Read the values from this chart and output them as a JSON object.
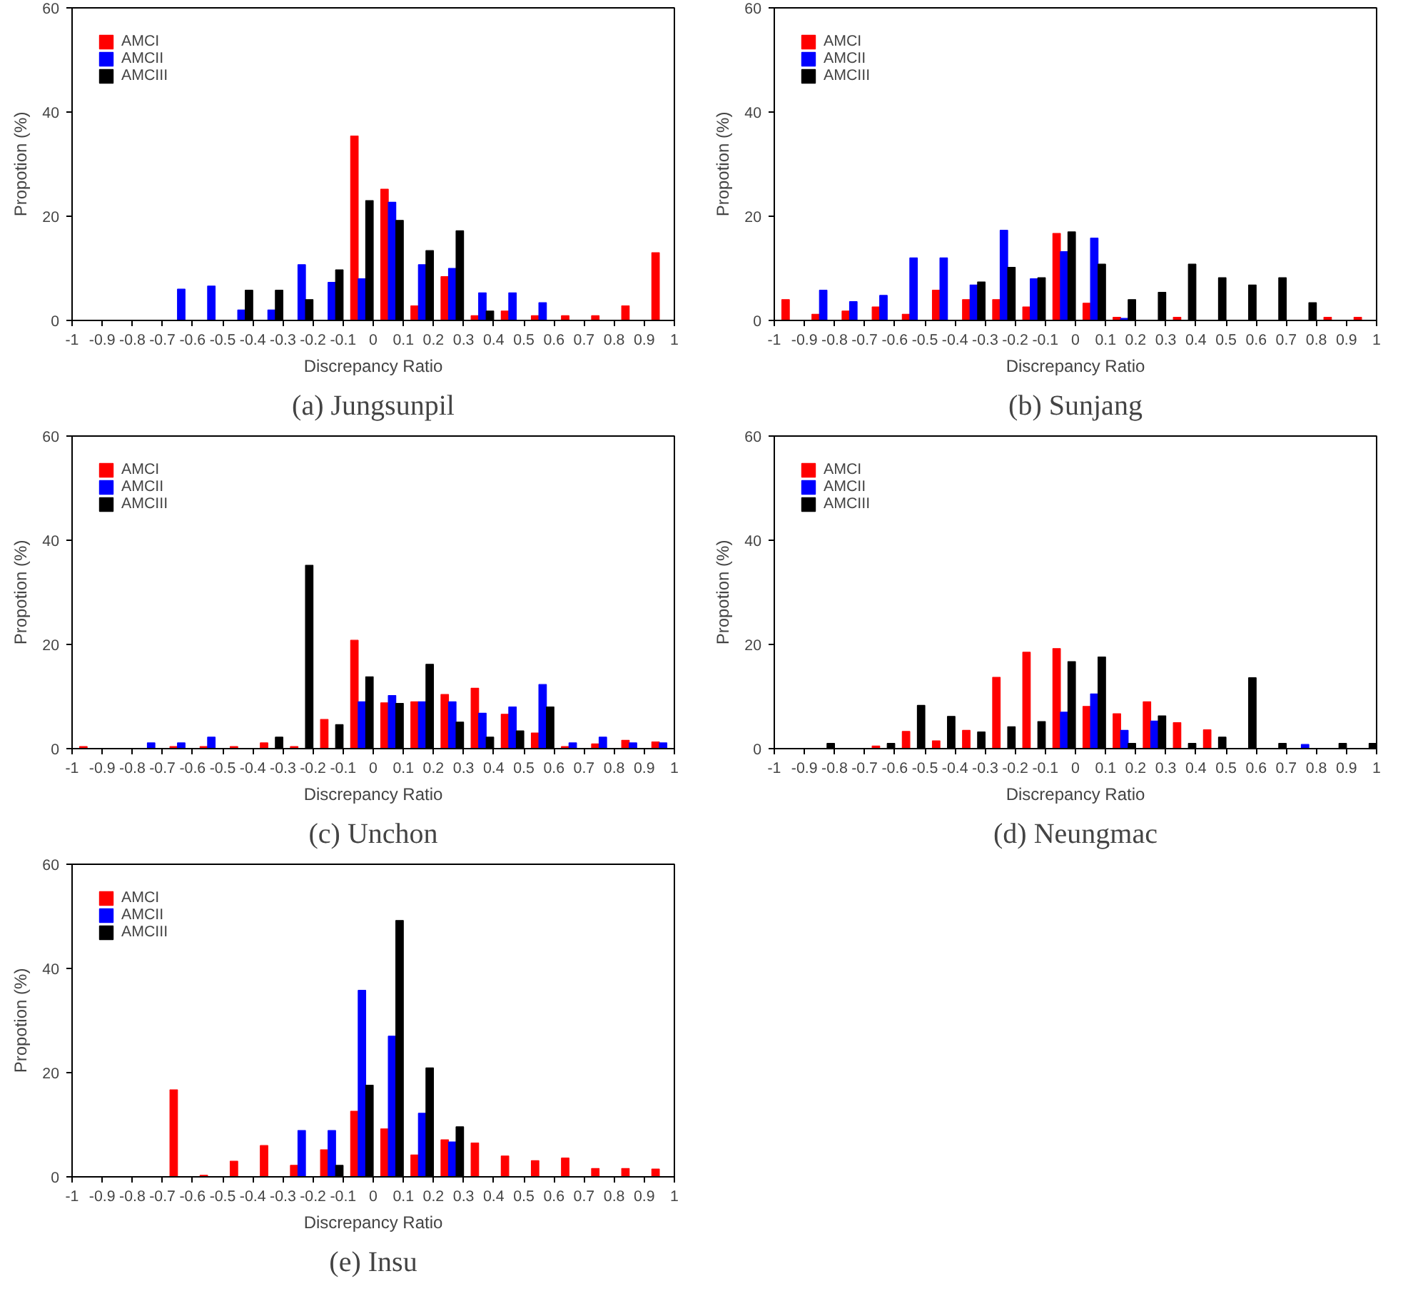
{
  "chart_data": [
    {
      "type": "histogram",
      "title": "(a) Jungsunpil",
      "xlabel": "Discrepancy Ratio",
      "ylabel": "Propotion (%)",
      "legend": "top left",
      "xlim": [
        -1,
        1
      ],
      "ylim": [
        0,
        60
      ],
      "xticks": [
        -1,
        -0.9,
        -0.8,
        -0.7,
        -0.6,
        -0.5,
        -0.4,
        -0.3,
        -0.2,
        -0.1,
        0,
        0.1,
        0.2,
        0.3,
        0.4,
        0.5,
        0.6,
        0.7,
        0.8,
        0.9,
        1
      ],
      "yticks": [
        0,
        20,
        40,
        60
      ],
      "bins": [
        -1,
        -0.9,
        -0.8,
        -0.7,
        -0.6,
        -0.5,
        -0.4,
        -0.3,
        -0.2,
        -0.1,
        0,
        0.1,
        0.2,
        0.3,
        0.4,
        0.5,
        0.6,
        0.7,
        0.8,
        0.9,
        1
      ],
      "series": [
        {
          "name": "AMCI",
          "color": "#ff0000",
          "values": [
            0,
            0,
            0,
            0,
            0,
            0,
            0,
            0,
            0,
            35.4,
            25.2,
            2.8,
            8.4,
            0.9,
            1.8,
            0.9,
            0.9,
            0.9,
            2.8,
            13
          ]
        },
        {
          "name": "AMCII",
          "color": "#0000ff",
          "values": [
            0,
            0,
            0,
            6,
            6.6,
            2,
            2,
            10.7,
            7.3,
            8,
            22.7,
            10.7,
            10,
            5.3,
            5.3,
            3.4,
            0,
            0,
            0,
            0
          ]
        },
        {
          "name": "AMCIII",
          "color": "#000000",
          "values": [
            0,
            0,
            0,
            0,
            0,
            5.8,
            5.8,
            4,
            9.7,
            23,
            19.2,
            13.4,
            17.2,
            1.8,
            0,
            0,
            0,
            0,
            0,
            0
          ]
        }
      ]
    },
    {
      "type": "histogram",
      "title": "(b) Sunjang",
      "xlabel": "Discrepancy Ratio",
      "ylabel": "Propotion (%)",
      "legend": "top left",
      "xlim": [
        -1,
        1
      ],
      "ylim": [
        0,
        60
      ],
      "xticks": [
        -1,
        -0.9,
        -0.8,
        -0.7,
        -0.6,
        -0.5,
        -0.4,
        -0.3,
        -0.2,
        -0.1,
        0,
        0.1,
        0.2,
        0.3,
        0.4,
        0.5,
        0.6,
        0.7,
        0.8,
        0.9,
        1
      ],
      "yticks": [
        0,
        20,
        40,
        60
      ],
      "bins": [
        -1,
        -0.9,
        -0.8,
        -0.7,
        -0.6,
        -0.5,
        -0.4,
        -0.3,
        -0.2,
        -0.1,
        0,
        0.1,
        0.2,
        0.3,
        0.4,
        0.5,
        0.6,
        0.7,
        0.8,
        0.9,
        1
      ],
      "series": [
        {
          "name": "AMCI",
          "color": "#ff0000",
          "values": [
            4,
            1.2,
            1.8,
            2.6,
            1.2,
            5.8,
            4,
            4,
            2.6,
            16.7,
            3.3,
            0.6,
            0,
            0.6,
            0,
            0,
            0,
            0,
            0.6,
            0.6
          ]
        },
        {
          "name": "AMCII",
          "color": "#0000ff",
          "values": [
            0,
            5.8,
            3.6,
            4.8,
            12,
            12,
            6.8,
            17.3,
            8,
            13.2,
            15.8,
            0.4,
            0,
            0,
            0,
            0,
            0,
            0,
            0,
            0
          ]
        },
        {
          "name": "AMCIII",
          "color": "#000000",
          "values": [
            0,
            0,
            0,
            0,
            0,
            0,
            7.4,
            10.2,
            8.2,
            17,
            10.8,
            4,
            5.4,
            10.8,
            8.2,
            6.8,
            8.2,
            3.4,
            0,
            0
          ]
        }
      ]
    },
    {
      "type": "histogram",
      "title": "(c) Unchon",
      "xlabel": "Discrepancy Ratio",
      "ylabel": "Propotion (%)",
      "legend": "top left",
      "xlim": [
        -1,
        1
      ],
      "ylim": [
        0,
        60
      ],
      "xticks": [
        -1,
        -0.9,
        -0.8,
        -0.7,
        -0.6,
        -0.5,
        -0.4,
        -0.3,
        -0.2,
        -0.1,
        0,
        0.1,
        0.2,
        0.3,
        0.4,
        0.5,
        0.6,
        0.7,
        0.8,
        0.9,
        1
      ],
      "yticks": [
        0,
        20,
        40,
        60
      ],
      "bins": [
        -1,
        -0.9,
        -0.8,
        -0.7,
        -0.6,
        -0.5,
        -0.4,
        -0.3,
        -0.2,
        -0.1,
        0,
        0.1,
        0.2,
        0.3,
        0.4,
        0.5,
        0.6,
        0.7,
        0.8,
        0.9,
        1
      ],
      "series": [
        {
          "name": "AMCI",
          "color": "#ff0000",
          "values": [
            0.4,
            0,
            0,
            0.4,
            0.4,
            0.4,
            1.1,
            0.4,
            5.6,
            20.8,
            8.8,
            9,
            10.4,
            11.6,
            6.6,
            3,
            0.4,
            0.9,
            1.6,
            1.3
          ]
        },
        {
          "name": "AMCII",
          "color": "#0000ff",
          "values": [
            0,
            0,
            1.1,
            1.1,
            2.2,
            0,
            0,
            0,
            0,
            9,
            10.2,
            9,
            9,
            6.8,
            8,
            12.3,
            1.1,
            2.2,
            1.1,
            1.1
          ]
        },
        {
          "name": "AMCIII",
          "color": "#000000",
          "values": [
            0,
            0,
            0,
            0,
            0,
            0,
            2.2,
            35.2,
            4.6,
            13.8,
            8.7,
            16.2,
            5.1,
            2.2,
            3.4,
            8,
            0,
            0,
            0,
            0
          ]
        }
      ]
    },
    {
      "type": "histogram",
      "title": "(d) Neungmac",
      "xlabel": "Discrepancy Ratio",
      "ylabel": "Propotion (%)",
      "legend": "top left",
      "xlim": [
        -1,
        1
      ],
      "ylim": [
        0,
        60
      ],
      "xticks": [
        -1,
        -0.9,
        -0.8,
        -0.7,
        -0.6,
        -0.5,
        -0.4,
        -0.3,
        -0.2,
        -0.1,
        0,
        0.1,
        0.2,
        0.3,
        0.4,
        0.5,
        0.6,
        0.7,
        0.8,
        0.9,
        1
      ],
      "yticks": [
        0,
        20,
        40,
        60
      ],
      "bins": [
        -1,
        -0.9,
        -0.8,
        -0.7,
        -0.6,
        -0.5,
        -0.4,
        -0.3,
        -0.2,
        -0.1,
        0,
        0.1,
        0.2,
        0.3,
        0.4,
        0.5,
        0.6,
        0.7,
        0.8,
        0.9,
        1
      ],
      "series": [
        {
          "name": "AMCI",
          "color": "#ff0000",
          "values": [
            0,
            0,
            0,
            0.5,
            3.3,
            1.5,
            3.5,
            13.7,
            18.5,
            19.2,
            8.1,
            6.7,
            9,
            5,
            3.6,
            0,
            0,
            0,
            0,
            0
          ]
        },
        {
          "name": "AMCII",
          "color": "#0000ff",
          "values": [
            0,
            0,
            0,
            0,
            0,
            0,
            0,
            0,
            0,
            7,
            10.5,
            3.5,
            5.3,
            0,
            0,
            0,
            0,
            0.8,
            0,
            0
          ]
        },
        {
          "name": "AMCIII",
          "color": "#000000",
          "values": [
            0,
            1,
            0,
            1,
            8.3,
            6.2,
            3.2,
            4.2,
            5.2,
            16.7,
            17.6,
            1,
            6.3,
            1,
            2.2,
            13.6,
            1,
            0,
            1,
            1
          ]
        }
      ]
    },
    {
      "type": "histogram",
      "title": "(e) Insu",
      "xlabel": "Discrepancy Ratio",
      "ylabel": "Propotion (%)",
      "legend": "top left",
      "xlim": [
        -1,
        1
      ],
      "ylim": [
        0,
        60
      ],
      "xticks": [
        -1,
        -0.9,
        -0.8,
        -0.7,
        -0.6,
        -0.5,
        -0.4,
        -0.3,
        -0.2,
        -0.1,
        0,
        0.1,
        0.2,
        0.3,
        0.4,
        0.5,
        0.6,
        0.7,
        0.8,
        0.9,
        1
      ],
      "yticks": [
        0,
        20,
        40,
        60
      ],
      "bins": [
        -1,
        -0.9,
        -0.8,
        -0.7,
        -0.6,
        -0.5,
        -0.4,
        -0.3,
        -0.2,
        -0.1,
        0,
        0.1,
        0.2,
        0.3,
        0.4,
        0.5,
        0.6,
        0.7,
        0.8,
        0.9,
        1
      ],
      "series": [
        {
          "name": "AMCI",
          "color": "#ff0000",
          "values": [
            0,
            0,
            0,
            16.7,
            0.3,
            3,
            6,
            2.2,
            5.2,
            12.6,
            9.2,
            4.2,
            7.1,
            6.5,
            4,
            3.1,
            3.6,
            1.6,
            1.6,
            1.5
          ]
        },
        {
          "name": "AMCII",
          "color": "#0000ff",
          "values": [
            0,
            0,
            0,
            0,
            0,
            0,
            0,
            8.9,
            8.9,
            35.8,
            27,
            12.2,
            6.7,
            0,
            0,
            0,
            0,
            0,
            0,
            0
          ]
        },
        {
          "name": "AMCIII",
          "color": "#000000",
          "values": [
            0,
            0,
            0,
            0,
            0,
            0,
            0,
            0,
            2.2,
            17.6,
            49.2,
            20.9,
            9.6,
            0,
            0,
            0,
            0,
            0,
            0,
            0
          ]
        }
      ]
    }
  ]
}
